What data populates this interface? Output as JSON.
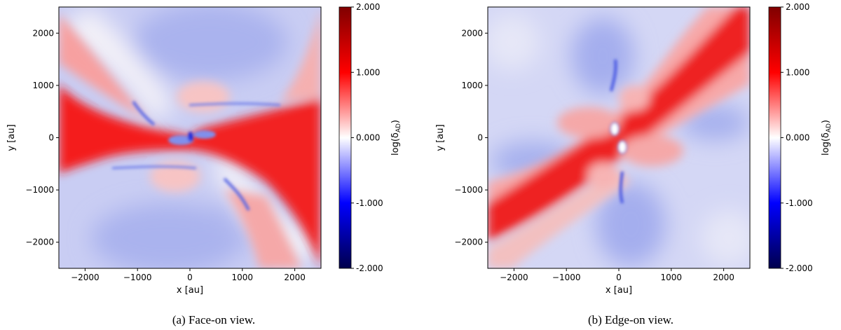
{
  "chart_data": [
    {
      "type": "heatmap",
      "caption": "(a) Face-on view.",
      "xlabel": "x [au]",
      "ylabel": "y [au]",
      "xlim": [
        -2500,
        2500
      ],
      "ylim": [
        -2500,
        2500
      ],
      "xticks": [
        -2000,
        -1000,
        0,
        1000,
        2000
      ],
      "xtick_labels": [
        "−2000",
        "−1000",
        "0",
        "1000",
        "2000"
      ],
      "yticks": [
        -2000,
        -1000,
        0,
        1000,
        2000
      ],
      "ytick_labels": [
        "−2000",
        "−1000",
        "0",
        "1000",
        "2000"
      ],
      "colorbar": {
        "label": "log(δ_AD)",
        "label_base": "log(δ",
        "label_sub": "AD",
        "label_close": ")",
        "range": [
          -2,
          2
        ],
        "ticks": [
          2,
          1,
          0,
          -1,
          -2
        ],
        "tick_labels": [
          "2.000",
          "1.000",
          "0.000",
          "-1.000",
          "-2.000"
        ],
        "colormap": "seismic"
      },
      "grid": false
    },
    {
      "type": "heatmap",
      "caption": "(b) Edge-on view.",
      "xlabel": "x [au]",
      "ylabel": "y [au]",
      "xlim": [
        -2500,
        2500
      ],
      "ylim": [
        -2500,
        2500
      ],
      "xticks": [
        -2000,
        -1000,
        0,
        1000,
        2000
      ],
      "xtick_labels": [
        "−2000",
        "−1000",
        "0",
        "1000",
        "2000"
      ],
      "yticks": [
        -2000,
        -1000,
        0,
        1000,
        2000
      ],
      "ytick_labels": [
        "−2000",
        "−1000",
        "0",
        "1000",
        "2000"
      ],
      "colorbar": {
        "label": "log(δ_AD)",
        "label_base": "log(δ",
        "label_sub": "AD",
        "label_close": ")",
        "range": [
          -2,
          2
        ],
        "ticks": [
          2,
          1,
          0,
          -1,
          -2
        ],
        "tick_labels": [
          "2.000",
          "1.000",
          "0.000",
          "-1.000",
          "-2.000"
        ],
        "colormap": "seismic"
      },
      "grid": false
    }
  ]
}
